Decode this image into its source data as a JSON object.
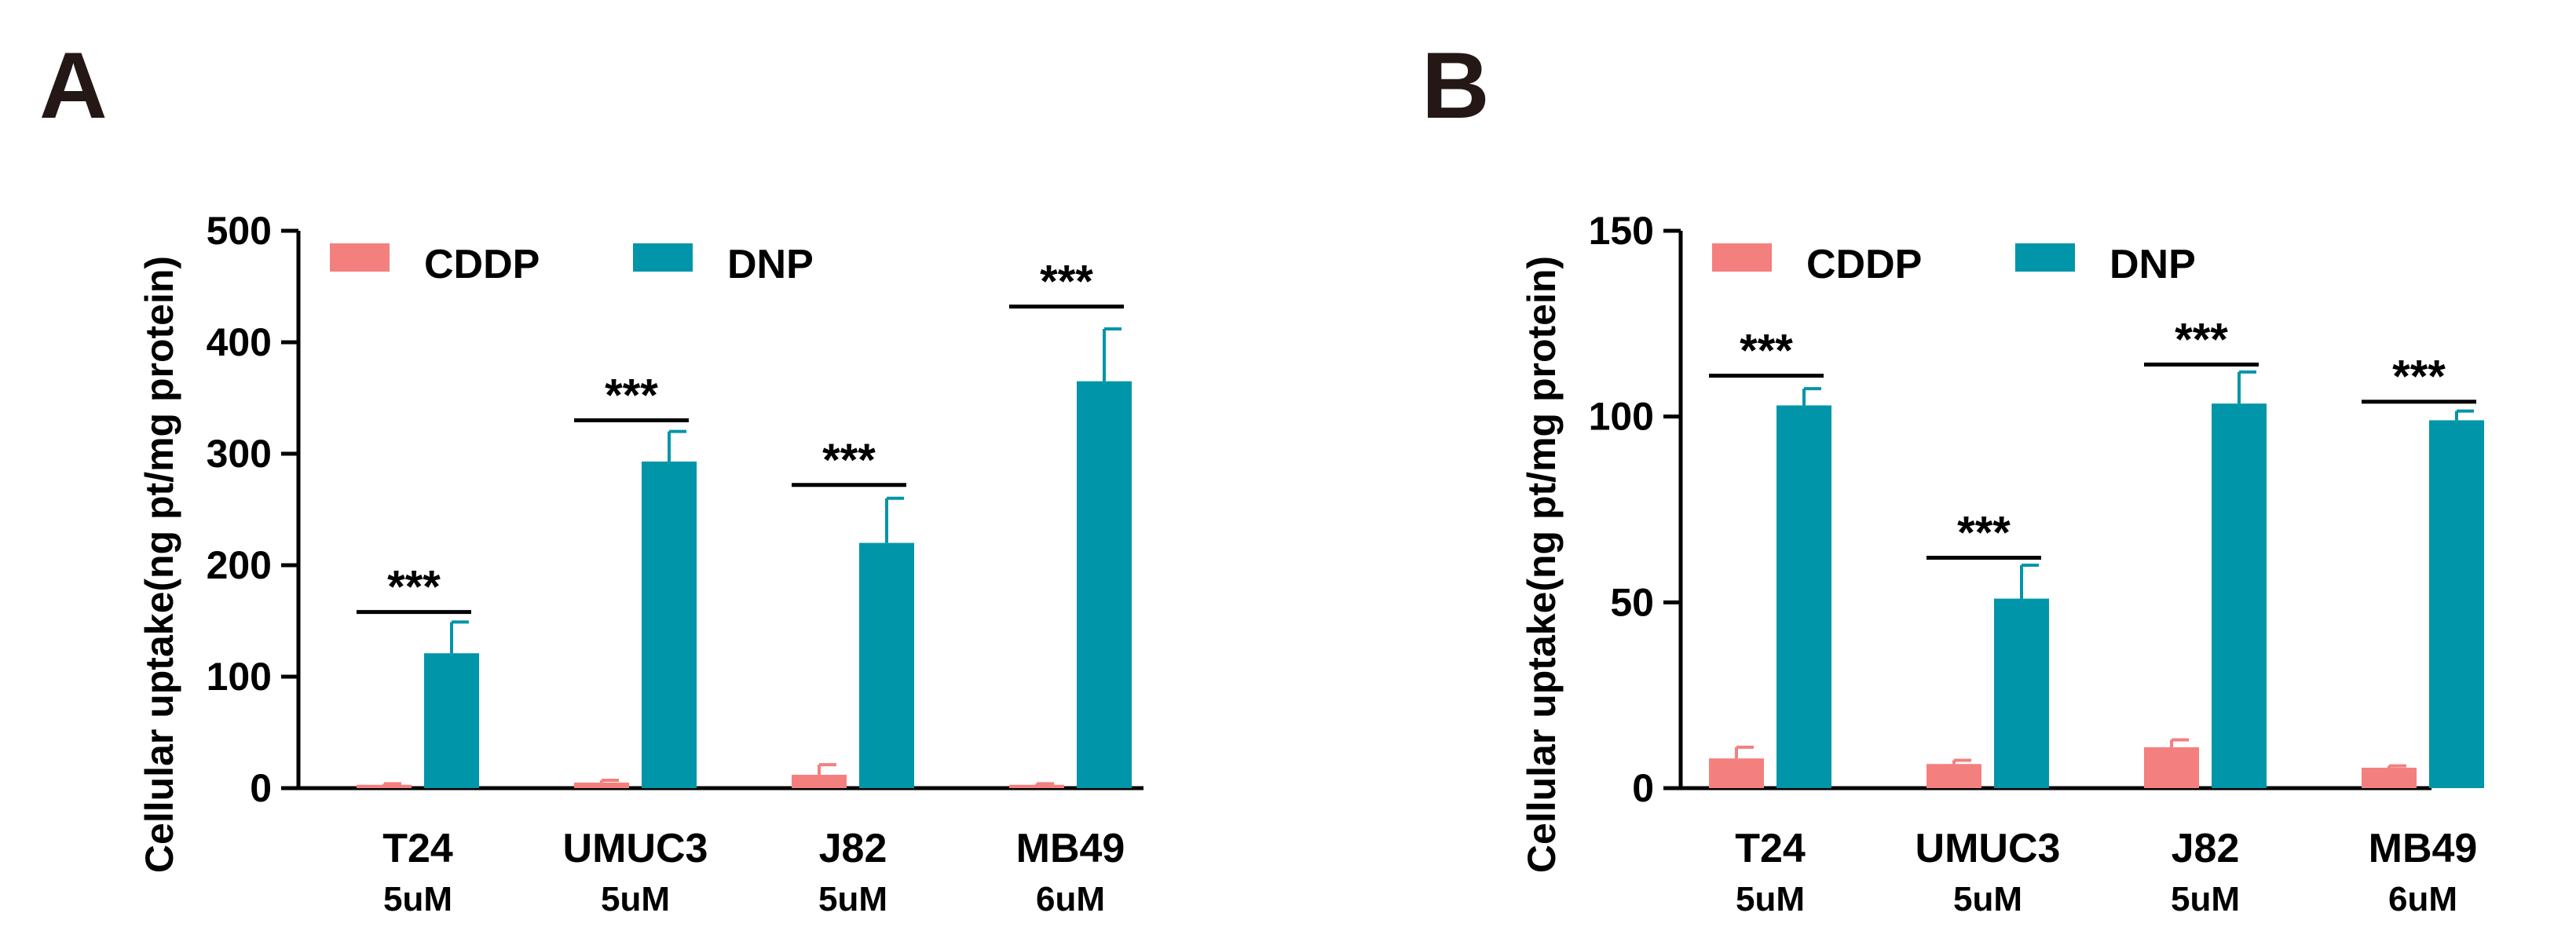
{
  "colors": {
    "cddp": "#f47f7f",
    "dnp": "#0095a8",
    "axis": "#000000"
  },
  "chart_data": [
    {
      "panel": "A",
      "type": "bar",
      "ylabel": "Cellular uptake(ng pt/mg protein)",
      "ylim": [
        0,
        500
      ],
      "yticks": [
        0,
        100,
        200,
        300,
        400,
        500
      ],
      "categories": [
        "T24",
        "UMUC3",
        "J82",
        "MB49"
      ],
      "concentrations": [
        "5uM",
        "5uM",
        "5uM",
        "6uM"
      ],
      "legend": [
        "CDDP",
        "DNP"
      ],
      "legend_position": "top-left",
      "series": [
        {
          "name": "CDDP",
          "values": [
            3,
            5,
            12,
            3
          ],
          "errors": [
            1,
            2,
            9,
            1
          ]
        },
        {
          "name": "DNP",
          "values": [
            121,
            293,
            220,
            365
          ],
          "errors": [
            28,
            27,
            40,
            47
          ]
        }
      ],
      "significance": [
        "***",
        "***",
        "***",
        "***"
      ],
      "significance_levels": [
        158,
        330,
        272,
        432
      ]
    },
    {
      "panel": "B",
      "type": "bar",
      "ylabel": "Cellular uptake(ng pt/mg protein)",
      "ylim": [
        0,
        150
      ],
      "yticks": [
        0,
        50,
        100,
        150
      ],
      "categories": [
        "T24",
        "UMUC3",
        "J82",
        "MB49"
      ],
      "concentrations": [
        "5uM",
        "5uM",
        "5uM",
        "6uM"
      ],
      "legend": [
        "CDDP",
        "DNP"
      ],
      "legend_position": "top-left",
      "series": [
        {
          "name": "CDDP",
          "values": [
            8,
            6.5,
            11,
            5.5
          ],
          "errors": [
            3,
            1,
            2,
            0.5
          ]
        },
        {
          "name": "DNP",
          "values": [
            103,
            51,
            103.5,
            99
          ],
          "errors": [
            4.5,
            9,
            8.5,
            2.5
          ]
        }
      ],
      "significance": [
        "***",
        "***",
        "***",
        "***"
      ],
      "significance_levels": [
        111,
        62,
        114,
        104
      ]
    }
  ]
}
